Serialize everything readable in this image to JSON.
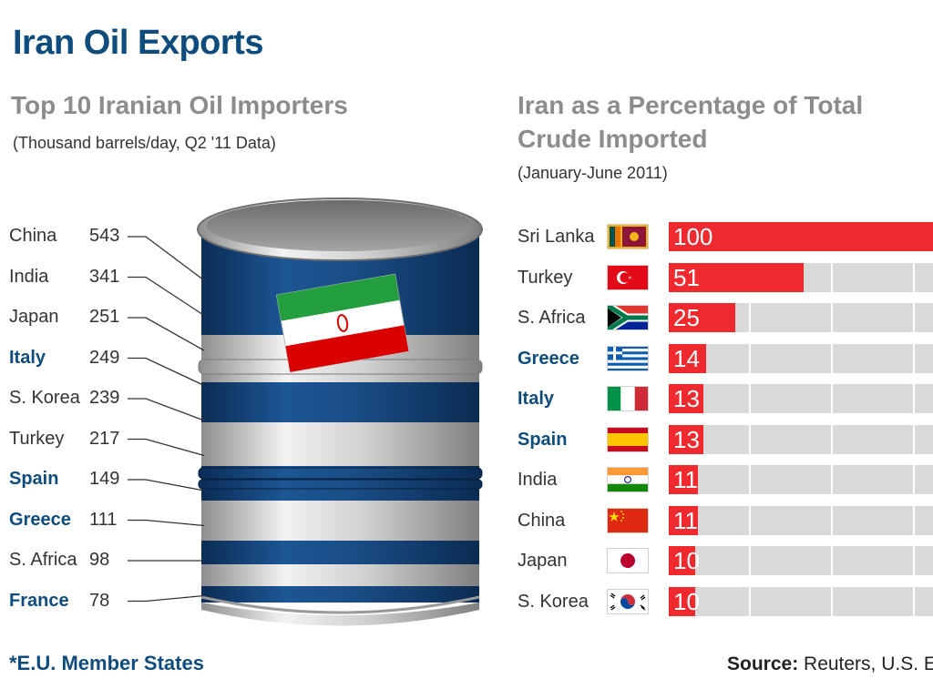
{
  "title": "Iran Oil Exports",
  "left_panel": {
    "subtitle": "Top 10 Iranian Oil Importers",
    "note": "(Thousand barrels/day, Q2 '11 Data)"
  },
  "right_panel": {
    "subtitle_line1": "Iran as a Percentage of Total",
    "subtitle_line2": "Crude Imported",
    "note": "(January-June 2011)"
  },
  "chart_data": [
    {
      "type": "table",
      "title": "Top 10 Iranian Oil Importers",
      "unit": "Thousand barrels/day, Q2 '11 Data",
      "rows": [
        {
          "country": "China",
          "value": 543,
          "eu": false
        },
        {
          "country": "India",
          "value": 341,
          "eu": false
        },
        {
          "country": "Japan",
          "value": 251,
          "eu": false
        },
        {
          "country": "Italy",
          "value": 249,
          "eu": true
        },
        {
          "country": "S. Korea",
          "value": 239,
          "eu": false
        },
        {
          "country": "Turkey",
          "value": 217,
          "eu": false
        },
        {
          "country": "Spain",
          "value": 149,
          "eu": true
        },
        {
          "country": "Greece",
          "value": 111,
          "eu": true
        },
        {
          "country": "S. Africa",
          "value": 98,
          "eu": false
        },
        {
          "country": "France",
          "value": 78,
          "eu": true
        }
      ]
    },
    {
      "type": "bar",
      "orientation": "horizontal",
      "title": "Iran as a Percentage of Total Crude Imported",
      "subtitle": "(January-June 2011)",
      "xlim": [
        0,
        100
      ],
      "categories": [
        "Sri Lanka",
        "Turkey",
        "S. Africa",
        "Greece",
        "Italy",
        "Spain",
        "India",
        "China",
        "Japan",
        "S. Korea"
      ],
      "values": [
        100,
        51,
        25,
        14,
        13,
        13,
        11,
        11,
        10,
        10
      ],
      "eu": [
        false,
        false,
        false,
        true,
        true,
        true,
        false,
        false,
        false,
        false
      ],
      "flags": [
        "sri-lanka-flag",
        "turkey-flag",
        "south-africa-flag",
        "greece-flag",
        "italy-flag",
        "spain-flag",
        "india-flag",
        "china-flag",
        "japan-flag",
        "south-korea-flag"
      ],
      "bar_color": "#ee2a2f"
    }
  ],
  "colors": {
    "title": "#0e4c7e",
    "eu_label": "#0e4c7e",
    "bar": "#ee2a2f",
    "bar_bg": "#d9d9d9",
    "barrel_blue": "#133f73"
  },
  "footnote": "*E.U. Member States",
  "source": {
    "label": "Source:",
    "text": " Reuters, U.S. E"
  }
}
